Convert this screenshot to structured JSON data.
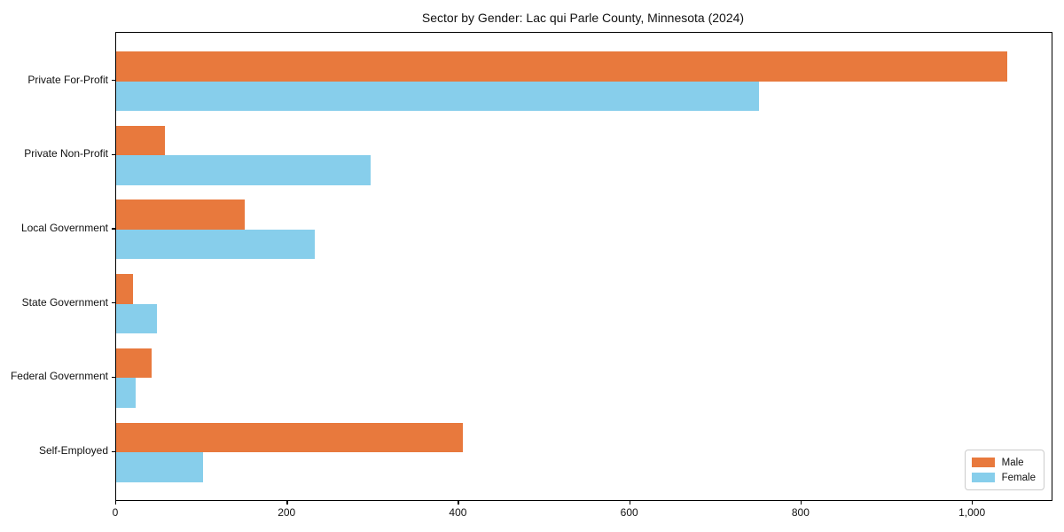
{
  "chart_data": {
    "type": "bar",
    "orientation": "horizontal",
    "title": "Sector by Gender: Lac qui Parle County, Minnesota (2024)",
    "categories": [
      "Private For-Profit",
      "Private Non-Profit",
      "Local Government",
      "State Government",
      "Federal Government",
      "Self-Employed"
    ],
    "series": [
      {
        "name": "Male",
        "color": "#e8793d",
        "values": [
          1040,
          57,
          150,
          20,
          41,
          405
        ]
      },
      {
        "name": "Female",
        "color": "#87ceeb",
        "values": [
          750,
          297,
          232,
          48,
          23,
          101
        ]
      }
    ],
    "xlabel": "",
    "ylabel": "",
    "xlim": [
      0,
      1092
    ],
    "x_ticks": [
      0,
      200,
      400,
      600,
      800,
      1000
    ],
    "x_tick_labels": [
      "0",
      "200",
      "400",
      "600",
      "800",
      "1,000"
    ],
    "grid": false,
    "legend_position": "lower right",
    "plot_background": "#ffffff",
    "spine_color": "#000000"
  }
}
